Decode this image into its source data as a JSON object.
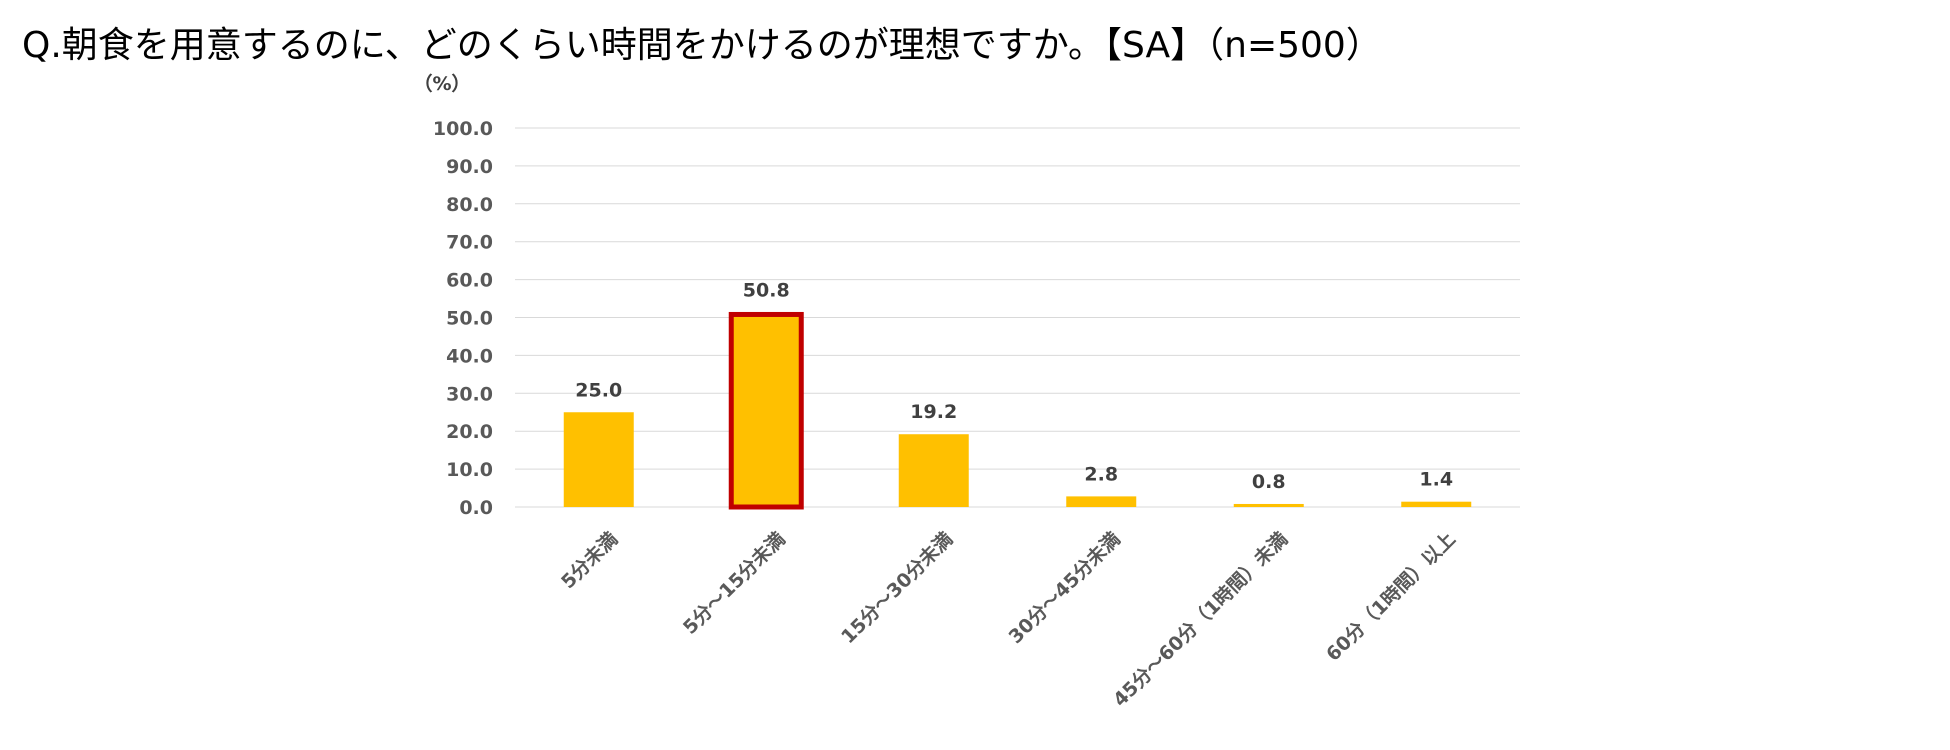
{
  "question": "Q.朝食を用意するのに、どのくらい時間をかけるのが理想ですか。【SA】（n=500）",
  "colors": {
    "bar": "#FFC000",
    "highlight_border": "#C00000",
    "grid": "#D9D9D9"
  },
  "chart_data": {
    "type": "bar",
    "title": "Q.朝食を用意するのに、どのくらい時間をかけるのが理想ですか。【SA】（n=500）",
    "ylabel": "（%）",
    "xlabel": "",
    "ylim": [
      0,
      100
    ],
    "yticks": [
      "100.0",
      "90.0",
      "80.0",
      "70.0",
      "60.0",
      "50.0",
      "40.0",
      "30.0",
      "20.0",
      "10.0",
      "0.0"
    ],
    "grid": true,
    "categories": [
      "5分未満",
      "5分～15分未満",
      "15分～30分未満",
      "30分～45分未満",
      "45分～60分（1時間）未満",
      "60分（1時間）以上"
    ],
    "values": [
      25.0,
      50.8,
      19.2,
      2.8,
      0.8,
      1.4
    ],
    "value_labels": [
      "25.0",
      "50.8",
      "19.2",
      "2.8",
      "0.8",
      "1.4"
    ],
    "highlighted_index": 1
  }
}
